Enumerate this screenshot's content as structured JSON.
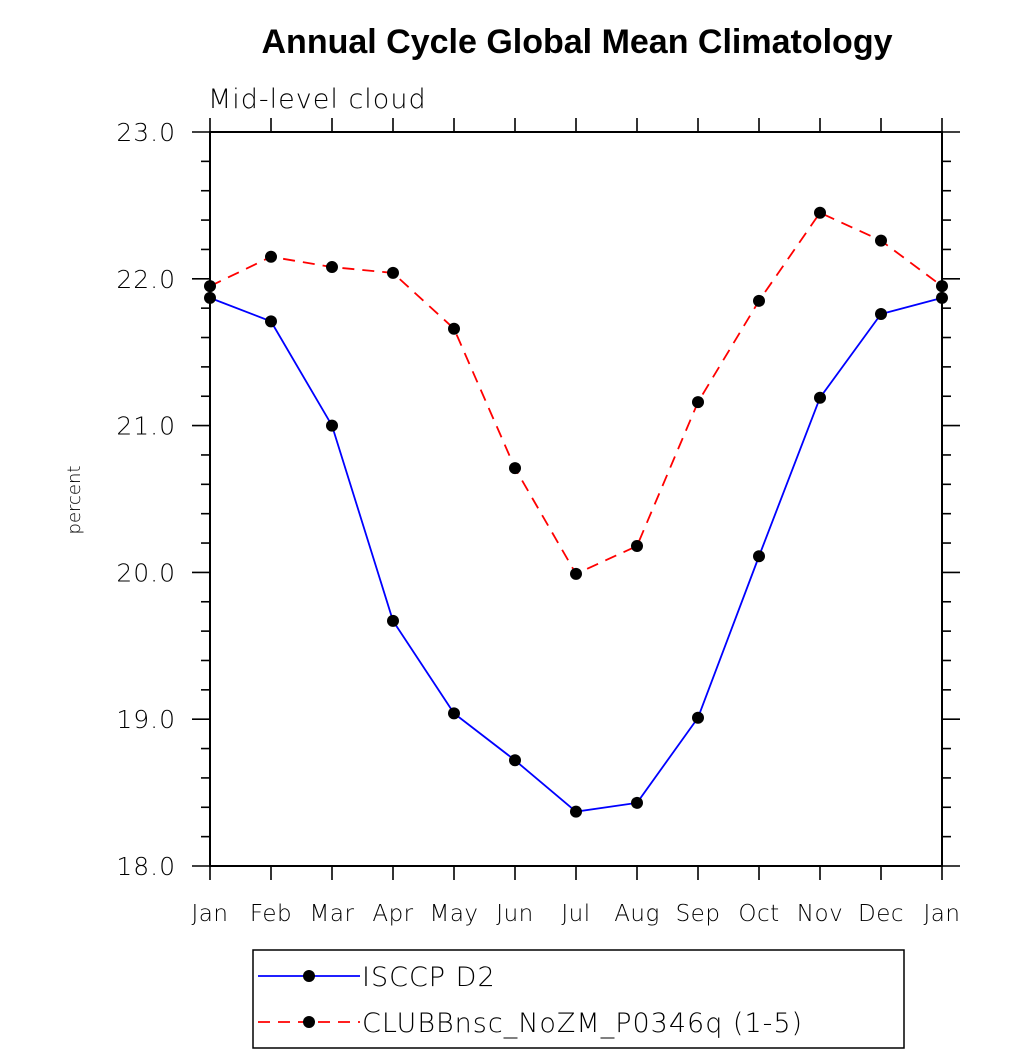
{
  "chart_data": {
    "type": "line",
    "title": "Annual Cycle Global Mean Climatology",
    "subtitle": "Mid-level cloud",
    "ylabel": "percent",
    "xlabel": "",
    "ylim": [
      18.0,
      23.0
    ],
    "yticks": [
      "18.0",
      "19.0",
      "20.0",
      "21.0",
      "22.0",
      "23.0"
    ],
    "categories": [
      "Jan",
      "Feb",
      "Mar",
      "Apr",
      "May",
      "Jun",
      "Jul",
      "Aug",
      "Sep",
      "Oct",
      "Nov",
      "Dec",
      "Jan"
    ],
    "series": [
      {
        "name": "ISCCP D2",
        "color": "#0000ff",
        "dash": "solid",
        "values": [
          21.87,
          21.71,
          21.0,
          19.67,
          19.04,
          18.72,
          18.37,
          18.43,
          19.01,
          20.11,
          21.19,
          21.76,
          21.87
        ]
      },
      {
        "name": "CLUBBnsc_NoZM_P0346q (1-5)",
        "color": "#ff0000",
        "dash": "dashed",
        "values": [
          21.95,
          22.15,
          22.08,
          22.04,
          21.66,
          20.71,
          19.99,
          20.18,
          21.16,
          21.85,
          22.45,
          22.26,
          21.95
        ]
      }
    ],
    "legend_position": "bottom"
  }
}
